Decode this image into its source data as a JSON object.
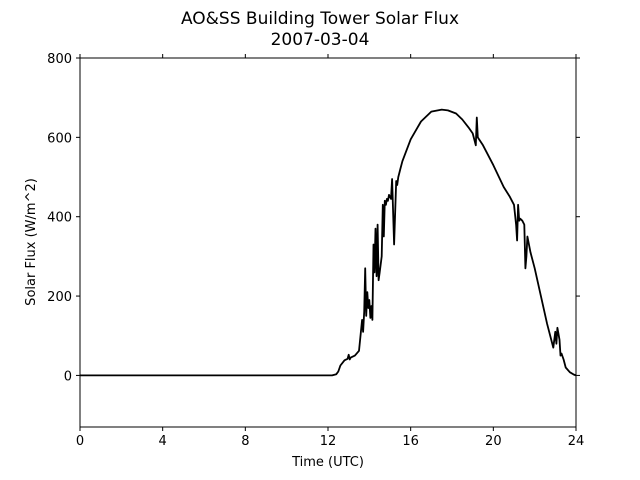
{
  "chart_data": {
    "type": "line",
    "title": "AO&SS Building Tower Solar Flux",
    "subtitle": "2007-03-04",
    "xlabel": "Time (UTC)",
    "ylabel": "Solar Flux (W/m^2)",
    "xlim": [
      0,
      24
    ],
    "ylim": [
      -130,
      800
    ],
    "xticks": [
      0,
      4,
      8,
      12,
      16,
      20,
      24
    ],
    "yticks": [
      0,
      200,
      400,
      600,
      800
    ],
    "grid": false,
    "line_color": "#000000",
    "series": [
      {
        "x": [
          0,
          2,
          4,
          6,
          8,
          10,
          11,
          12,
          12.2,
          12.4,
          12.5,
          12.6,
          12.8,
          12.95,
          13.0,
          13.05,
          13.1,
          13.3,
          13.5,
          13.65,
          13.7,
          13.75,
          13.8,
          13.85,
          13.9,
          13.95,
          14.0,
          14.05,
          14.1,
          14.15,
          14.2,
          14.25,
          14.3,
          14.35,
          14.4,
          14.45,
          14.5,
          14.55,
          14.6,
          14.65,
          14.7,
          14.75,
          14.8,
          14.85,
          14.9,
          14.95,
          15.0,
          15.05,
          15.1,
          15.2,
          15.3,
          15.35,
          15.4,
          15.45,
          15.5,
          15.6,
          16.0,
          16.5,
          17.0,
          17.5,
          17.8,
          18.2,
          18.5,
          18.8,
          19.0,
          19.15,
          19.2,
          19.25,
          19.5,
          20.0,
          20.5,
          20.8,
          21.0,
          21.1,
          21.15,
          21.2,
          21.25,
          21.3,
          21.4,
          21.5,
          21.55,
          21.6,
          21.65,
          21.8,
          22.0,
          22.3,
          22.6,
          22.9,
          23.0,
          23.05,
          23.1,
          23.2,
          23.25,
          23.3,
          23.4,
          23.5,
          23.7,
          23.9,
          24.0
        ],
        "y": [
          0,
          0,
          0,
          0,
          0,
          0,
          0,
          0,
          0,
          3,
          10,
          25,
          38,
          42,
          52,
          40,
          45,
          50,
          62,
          140,
          110,
          160,
          270,
          150,
          210,
          170,
          190,
          145,
          175,
          140,
          330,
          260,
          370,
          250,
          380,
          240,
          260,
          280,
          300,
          430,
          350,
          440,
          430,
          445,
          440,
          455,
          450,
          445,
          495,
          330,
          490,
          480,
          500,
          510,
          520,
          540,
          595,
          640,
          665,
          670,
          668,
          660,
          645,
          625,
          610,
          580,
          650,
          600,
          580,
          530,
          475,
          450,
          430,
          380,
          340,
          430,
          390,
          395,
          390,
          380,
          270,
          300,
          350,
          310,
          270,
          200,
          130,
          70,
          110,
          80,
          120,
          90,
          50,
          55,
          40,
          20,
          8,
          2,
          0
        ]
      }
    ]
  }
}
